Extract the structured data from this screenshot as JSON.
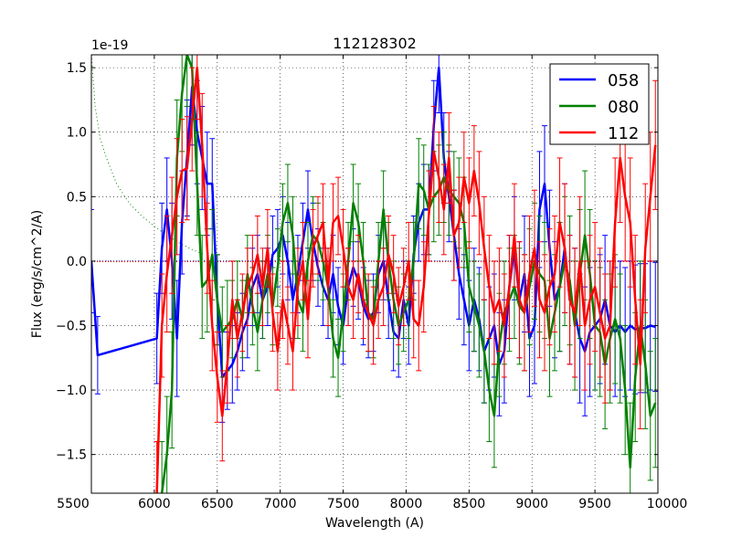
{
  "chart_data": {
    "type": "line",
    "title": "112128302",
    "xlabel": "Wavelength (A)",
    "ylabel": "Flux (erg/s/cm^2/A)",
    "offset_text": "1e-19",
    "xlim": [
      5500,
      10000
    ],
    "ylim": [
      -1.8,
      1.6
    ],
    "xticks": [
      5500,
      6000,
      6500,
      7000,
      7500,
      8000,
      8500,
      9000,
      9500,
      10000
    ],
    "xtick_labels": [
      "5500",
      "6000",
      "6500",
      "7000",
      "7500",
      "8000",
      "8500",
      "9000",
      "9500",
      "10000"
    ],
    "yticks": [
      -1.5,
      -1.0,
      -0.5,
      0.0,
      0.5,
      1.0,
      1.5
    ],
    "ytick_labels": [
      "−1.5",
      "−1.0",
      "−0.5",
      "0.0",
      "0.5",
      "1.0",
      "1.5"
    ],
    "grid": true,
    "legend_position": "top-right",
    "zero_reference": {
      "y": 0,
      "style": "dotted",
      "colors": [
        "#0000ff",
        "#ff0000"
      ]
    },
    "model_curve": {
      "color": "#008000",
      "style": "dotted",
      "x": [
        5500,
        5530,
        5570,
        5620,
        5700,
        5800,
        5900,
        6000,
        6100,
        6200,
        6300,
        6400
      ],
      "values": [
        1.6,
        1.2,
        0.95,
        0.8,
        0.6,
        0.45,
        0.35,
        0.27,
        0.2,
        0.14,
        0.09,
        0.05
      ]
    },
    "series": [
      {
        "name": "058",
        "color": "#0000ff",
        "x": [
          5500,
          5550,
          6020,
          6060,
          6100,
          6140,
          6180,
          6220,
          6260,
          6300,
          6340,
          6380,
          6420,
          6460,
          6500,
          6540,
          6580,
          6620,
          6660,
          6700,
          6740,
          6780,
          6820,
          6860,
          6900,
          6940,
          6980,
          7020,
          7060,
          7100,
          7140,
          7180,
          7220,
          7260,
          7300,
          7340,
          7380,
          7420,
          7460,
          7500,
          7540,
          7580,
          7620,
          7660,
          7700,
          7740,
          7780,
          7820,
          7860,
          7900,
          7940,
          7980,
          8020,
          8060,
          8100,
          8140,
          8180,
          8220,
          8260,
          8300,
          8340,
          8380,
          8420,
          8460,
          8500,
          8540,
          8580,
          8620,
          8660,
          8700,
          8740,
          8780,
          8820,
          8860,
          8900,
          8940,
          8980,
          9020,
          9060,
          9100,
          9140,
          9180,
          9220,
          9260,
          9300,
          9340,
          9380,
          9420,
          9460,
          9500,
          9540,
          9580,
          9620,
          9660,
          9700,
          9740,
          9780,
          9820,
          9860,
          9900,
          9940,
          9980
        ],
        "values": [
          0.0,
          -0.73,
          -0.6,
          0.1,
          0.4,
          0.0,
          -0.6,
          0.3,
          0.8,
          1.35,
          1.0,
          0.8,
          0.6,
          0.6,
          -0.3,
          -0.9,
          -0.85,
          -0.8,
          -0.7,
          -0.55,
          -0.45,
          -0.2,
          -0.1,
          -0.3,
          -0.2,
          0.05,
          0.1,
          0.2,
          0.0,
          -0.3,
          -0.1,
          0.15,
          0.4,
          0.15,
          -0.05,
          -0.2,
          -0.3,
          -0.1,
          -0.35,
          -0.5,
          -0.2,
          -0.05,
          -0.15,
          -0.35,
          -0.45,
          -0.4,
          -0.1,
          0.0,
          -0.3,
          -0.55,
          -0.6,
          -0.3,
          -0.5,
          0.05,
          0.3,
          0.4,
          0.4,
          1.05,
          1.5,
          0.8,
          0.5,
          0.2,
          -0.1,
          -0.3,
          -0.5,
          -0.3,
          -0.45,
          -0.7,
          -0.6,
          -0.5,
          -0.8,
          -0.7,
          -0.2,
          0.1,
          -0.3,
          -0.1,
          -0.6,
          -0.5,
          0.4,
          0.6,
          0.1,
          -0.3,
          -0.2,
          0.1,
          -0.3,
          -0.4,
          -0.6,
          -0.7,
          -0.55,
          -0.5,
          -0.45,
          -0.3,
          -0.5,
          -0.55,
          -0.5,
          -0.55,
          -0.5,
          -0.53,
          -0.52,
          -0.52,
          -0.5,
          -0.51
        ],
        "errors": [
          0.4,
          0.3,
          0.35,
          0.35,
          0.4,
          0.45,
          0.45,
          0.4,
          0.45,
          0.45,
          0.4,
          0.4,
          0.4,
          0.35,
          0.35,
          0.35,
          0.3,
          0.3,
          0.3,
          0.3,
          0.3,
          0.3,
          0.3,
          0.3,
          0.3,
          0.3,
          0.3,
          0.3,
          0.3,
          0.3,
          0.3,
          0.3,
          0.3,
          0.3,
          0.3,
          0.3,
          0.3,
          0.3,
          0.3,
          0.3,
          0.3,
          0.3,
          0.3,
          0.3,
          0.3,
          0.3,
          0.3,
          0.3,
          0.3,
          0.3,
          0.3,
          0.3,
          0.3,
          0.3,
          0.3,
          0.35,
          0.35,
          0.35,
          0.35,
          0.35,
          0.35,
          0.35,
          0.35,
          0.35,
          0.35,
          0.4,
          0.4,
          0.4,
          0.4,
          0.4,
          0.4,
          0.4,
          0.4,
          0.4,
          0.45,
          0.45,
          0.45,
          0.45,
          0.45,
          0.45,
          0.45,
          0.45,
          0.5,
          0.5,
          0.5,
          0.5,
          0.5,
          0.5,
          0.5,
          0.5,
          0.5,
          0.5,
          0.5,
          0.5,
          0.5,
          0.5,
          0.5,
          0.5,
          0.5,
          0.5,
          0.5,
          0.5
        ]
      },
      {
        "name": "080",
        "color": "#008000",
        "x": [
          6060,
          6100,
          6140,
          6180,
          6220,
          6260,
          6300,
          6340,
          6380,
          6420,
          6460,
          6500,
          6540,
          6580,
          6620,
          6660,
          6700,
          6740,
          6780,
          6820,
          6860,
          6900,
          6940,
          6980,
          7020,
          7060,
          7100,
          7140,
          7180,
          7220,
          7260,
          7300,
          7340,
          7380,
          7420,
          7460,
          7500,
          7540,
          7580,
          7620,
          7660,
          7700,
          7740,
          7780,
          7820,
          7860,
          7900,
          7940,
          7980,
          8020,
          8060,
          8100,
          8140,
          8180,
          8220,
          8260,
          8300,
          8340,
          8380,
          8420,
          8460,
          8500,
          8540,
          8580,
          8620,
          8660,
          8700,
          8740,
          8780,
          8820,
          8860,
          8900,
          8940,
          8980,
          9020,
          9060,
          9100,
          9140,
          9180,
          9220,
          9260,
          9300,
          9340,
          9380,
          9420,
          9460,
          9500,
          9540,
          9580,
          9620,
          9660,
          9700,
          9740,
          9780,
          9820,
          9860,
          9900,
          9940,
          9980
        ],
        "values": [
          -1.8,
          -1.5,
          -1.0,
          0.8,
          1.3,
          1.6,
          1.5,
          0.6,
          -0.2,
          -0.15,
          0.05,
          -0.3,
          -0.55,
          -0.5,
          -0.45,
          -0.3,
          -0.45,
          -0.1,
          -0.35,
          -0.55,
          -0.3,
          -0.1,
          -0.35,
          -0.05,
          0.3,
          0.45,
          0.2,
          -0.3,
          -0.4,
          0.0,
          0.2,
          0.15,
          0.0,
          -0.2,
          -0.6,
          -0.75,
          -0.4,
          0.0,
          0.45,
          0.3,
          0.0,
          -0.4,
          -0.45,
          0.0,
          0.4,
          0.0,
          -0.3,
          -0.5,
          -0.4,
          -0.3,
          0.0,
          0.6,
          0.55,
          0.4,
          0.5,
          0.55,
          0.65,
          0.55,
          0.5,
          0.45,
          0.3,
          -0.2,
          -0.35,
          -0.5,
          -0.7,
          -1.0,
          -1.2,
          -0.65,
          -0.4,
          -0.3,
          -0.2,
          -0.35,
          -0.4,
          -0.2,
          0.0,
          -0.1,
          -0.15,
          -0.6,
          -0.4,
          -0.2,
          0.0,
          -0.15,
          -0.5,
          -0.1,
          0.2,
          -0.1,
          -0.5,
          -0.55,
          -0.8,
          -0.6,
          -0.45,
          -0.6,
          -1.0,
          -1.6,
          -0.9,
          -0.5,
          -0.8,
          -1.2,
          -1.1
        ],
        "errors": [
          0.4,
          0.45,
          0.45,
          0.45,
          0.45,
          0.4,
          0.4,
          0.4,
          0.4,
          0.4,
          0.35,
          0.35,
          0.35,
          0.35,
          0.3,
          0.3,
          0.3,
          0.3,
          0.3,
          0.3,
          0.3,
          0.3,
          0.3,
          0.3,
          0.3,
          0.3,
          0.3,
          0.3,
          0.3,
          0.3,
          0.3,
          0.3,
          0.3,
          0.3,
          0.3,
          0.3,
          0.3,
          0.3,
          0.3,
          0.3,
          0.3,
          0.3,
          0.3,
          0.3,
          0.3,
          0.3,
          0.3,
          0.3,
          0.3,
          0.3,
          0.3,
          0.35,
          0.35,
          0.35,
          0.35,
          0.35,
          0.35,
          0.35,
          0.35,
          0.35,
          0.35,
          0.35,
          0.35,
          0.4,
          0.4,
          0.4,
          0.4,
          0.4,
          0.4,
          0.4,
          0.4,
          0.45,
          0.45,
          0.45,
          0.45,
          0.45,
          0.45,
          0.45,
          0.45,
          0.5,
          0.5,
          0.5,
          0.5,
          0.5,
          0.5,
          0.5,
          0.5,
          0.5,
          0.5,
          0.5,
          0.5,
          0.5,
          0.5,
          0.5,
          0.5,
          0.5,
          0.5,
          0.5,
          0.5
        ]
      },
      {
        "name": "112",
        "color": "#ff0000",
        "x": [
          6020,
          6060,
          6100,
          6140,
          6180,
          6220,
          6260,
          6300,
          6340,
          6380,
          6420,
          6460,
          6500,
          6540,
          6580,
          6620,
          6660,
          6700,
          6740,
          6780,
          6820,
          6860,
          6900,
          6940,
          6980,
          7020,
          7060,
          7100,
          7140,
          7180,
          7220,
          7260,
          7300,
          7340,
          7380,
          7420,
          7460,
          7500,
          7540,
          7580,
          7620,
          7660,
          7700,
          7740,
          7780,
          7820,
          7860,
          7900,
          7940,
          7980,
          8020,
          8060,
          8100,
          8140,
          8180,
          8220,
          8260,
          8300,
          8340,
          8380,
          8420,
          8460,
          8500,
          8540,
          8580,
          8620,
          8660,
          8700,
          8740,
          8780,
          8820,
          8860,
          8900,
          8940,
          8980,
          9020,
          9060,
          9100,
          9140,
          9180,
          9220,
          9260,
          9300,
          9340,
          9380,
          9420,
          9460,
          9500,
          9540,
          9580,
          9620,
          9660,
          9700,
          9740,
          9780,
          9820,
          9860,
          9900,
          9940,
          9980
        ],
        "values": [
          -1.8,
          -0.5,
          -0.1,
          0.2,
          0.5,
          0.7,
          0.72,
          1.1,
          1.5,
          0.9,
          0.1,
          -0.5,
          -0.9,
          -1.2,
          -0.8,
          -0.3,
          -0.6,
          -0.4,
          -0.2,
          -0.1,
          0.05,
          -0.2,
          0.1,
          -0.4,
          -0.7,
          -0.3,
          -0.5,
          -0.7,
          -0.2,
          0.0,
          -0.45,
          0.1,
          0.2,
          0.3,
          -0.2,
          0.3,
          0.35,
          0.1,
          -0.2,
          -0.3,
          -0.1,
          -0.3,
          -0.4,
          -0.5,
          -0.3,
          -0.2,
          0.05,
          -0.1,
          -0.35,
          -0.2,
          0.0,
          -0.45,
          -0.5,
          -0.2,
          0.35,
          0.85,
          0.65,
          0.4,
          0.8,
          0.2,
          0.3,
          0.65,
          0.45,
          0.7,
          0.45,
          0.1,
          -0.2,
          -0.4,
          -0.3,
          -0.5,
          -0.2,
          0.2,
          -0.3,
          -0.4,
          -0.1,
          0.1,
          -0.3,
          -0.4,
          -0.2,
          -0.1,
          0.3,
          0.1,
          -0.3,
          -0.4,
          0.0,
          -0.5,
          -0.3,
          -0.2,
          -0.4,
          -0.6,
          -0.5,
          0.3,
          0.8,
          0.5,
          0.3,
          -0.3,
          -0.8,
          0.1,
          0.5,
          0.9
        ],
        "errors": [
          0.4,
          0.4,
          0.45,
          0.45,
          0.45,
          0.4,
          0.4,
          0.4,
          0.4,
          0.4,
          0.35,
          0.35,
          0.35,
          0.35,
          0.3,
          0.3,
          0.3,
          0.3,
          0.3,
          0.3,
          0.3,
          0.3,
          0.3,
          0.3,
          0.3,
          0.3,
          0.3,
          0.3,
          0.3,
          0.3,
          0.3,
          0.3,
          0.3,
          0.3,
          0.3,
          0.3,
          0.3,
          0.3,
          0.3,
          0.3,
          0.3,
          0.3,
          0.3,
          0.3,
          0.3,
          0.3,
          0.3,
          0.3,
          0.3,
          0.3,
          0.3,
          0.3,
          0.35,
          0.35,
          0.35,
          0.35,
          0.35,
          0.35,
          0.35,
          0.35,
          0.35,
          0.35,
          0.35,
          0.35,
          0.4,
          0.4,
          0.4,
          0.4,
          0.4,
          0.4,
          0.4,
          0.4,
          0.45,
          0.45,
          0.45,
          0.45,
          0.45,
          0.45,
          0.45,
          0.45,
          0.5,
          0.5,
          0.5,
          0.5,
          0.5,
          0.5,
          0.5,
          0.5,
          0.5,
          0.5,
          0.5,
          0.5,
          0.5,
          0.5,
          0.5,
          0.5,
          0.5,
          0.5,
          0.5,
          0.5
        ]
      }
    ]
  }
}
